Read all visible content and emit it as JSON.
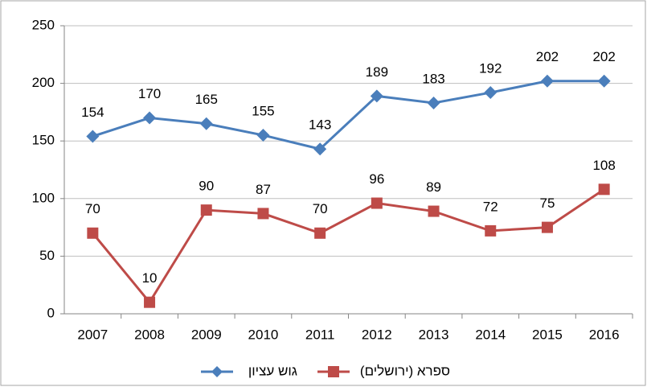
{
  "chart_data": {
    "type": "line",
    "categories": [
      "2007",
      "2008",
      "2009",
      "2010",
      "2011",
      "2012",
      "2013",
      "2014",
      "2015",
      "2016"
    ],
    "series": [
      {
        "name": "גוש עציון",
        "color": "#4a7ebb",
        "marker": "diamond",
        "values": [
          154,
          170,
          165,
          155,
          143,
          189,
          183,
          192,
          202,
          202
        ]
      },
      {
        "name": "ספרא (ירושלים)",
        "color": "#be4b48",
        "marker": "square",
        "values": [
          70,
          10,
          90,
          87,
          70,
          96,
          89,
          72,
          75,
          108
        ]
      }
    ],
    "ylim": [
      0,
      250
    ],
    "yticks": [
      0,
      50,
      100,
      150,
      200,
      250
    ],
    "grid": true,
    "data_labels": true,
    "legend": "bottom"
  }
}
